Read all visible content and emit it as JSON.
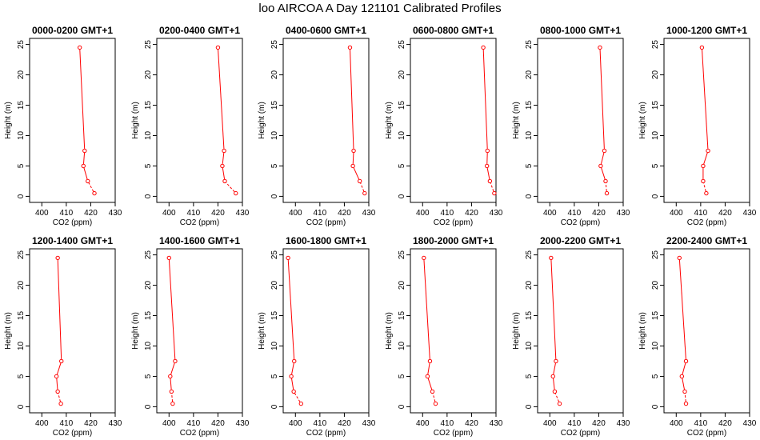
{
  "title": "loo AIRCOA A  Day 121101  Calibrated Profiles",
  "colors": {
    "series": "#ff0000",
    "axis": "#000000"
  },
  "chart_data": [
    {
      "type": "line",
      "title": "0000-0200 GMT+1",
      "xlabel": "CO2 (ppm)",
      "ylabel": "Height (m)",
      "xlim": [
        395,
        430
      ],
      "ylim": [
        -1,
        26
      ],
      "xticks": [
        400,
        410,
        420,
        430
      ],
      "yticks": [
        0,
        5,
        10,
        15,
        20,
        25
      ],
      "x": [
        421.5,
        418.8,
        417.0,
        417.5,
        415.5
      ],
      "y": [
        0.5,
        2.5,
        5.0,
        7.5,
        24.5
      ]
    },
    {
      "type": "line",
      "title": "0200-0400 GMT+1",
      "xlabel": "CO2 (ppm)",
      "ylabel": "Height (m)",
      "xlim": [
        395,
        430
      ],
      "ylim": [
        -1,
        26
      ],
      "xticks": [
        400,
        410,
        420,
        430
      ],
      "yticks": [
        0,
        5,
        10,
        15,
        20,
        25
      ],
      "x": [
        427.3,
        422.8,
        421.8,
        422.5,
        420.0
      ],
      "y": [
        0.5,
        2.5,
        5.0,
        7.5,
        24.5
      ]
    },
    {
      "type": "line",
      "title": "0400-0600 GMT+1",
      "xlabel": "CO2 (ppm)",
      "ylabel": "Height (m)",
      "xlim": [
        395,
        430
      ],
      "ylim": [
        -1,
        26
      ],
      "xticks": [
        400,
        410,
        420,
        430
      ],
      "yticks": [
        0,
        5,
        10,
        15,
        20,
        25
      ],
      "x": [
        428.3,
        426.3,
        423.5,
        423.8,
        422.3
      ],
      "y": [
        0.5,
        2.5,
        5.0,
        7.5,
        24.5
      ]
    },
    {
      "type": "line",
      "title": "0600-0800 GMT+1",
      "xlabel": "CO2 (ppm)",
      "ylabel": "Height (m)",
      "xlim": [
        395,
        430
      ],
      "ylim": [
        -1,
        26
      ],
      "xticks": [
        400,
        410,
        420,
        430
      ],
      "yticks": [
        0,
        5,
        10,
        15,
        20,
        25
      ],
      "x": [
        429.3,
        427.5,
        426.3,
        426.5,
        424.8
      ],
      "y": [
        0.5,
        2.5,
        5.0,
        7.5,
        24.5
      ]
    },
    {
      "type": "line",
      "title": "0800-1000 GMT+1",
      "xlabel": "CO2 (ppm)",
      "ylabel": "Height (m)",
      "xlim": [
        395,
        430
      ],
      "ylim": [
        -1,
        26
      ],
      "xticks": [
        400,
        410,
        420,
        430
      ],
      "yticks": [
        0,
        5,
        10,
        15,
        20,
        25
      ],
      "x": [
        423.3,
        422.8,
        420.8,
        422.3,
        420.5
      ],
      "y": [
        0.5,
        2.5,
        5.0,
        7.5,
        24.5
      ]
    },
    {
      "type": "line",
      "title": "1000-1200 GMT+1",
      "xlabel": "CO2 (ppm)",
      "ylabel": "Height (m)",
      "xlim": [
        395,
        430
      ],
      "ylim": [
        -1,
        26
      ],
      "xticks": [
        400,
        410,
        420,
        430
      ],
      "yticks": [
        0,
        5,
        10,
        15,
        20,
        25
      ],
      "x": [
        412.3,
        411.0,
        411.0,
        413.0,
        410.5
      ],
      "y": [
        0.5,
        2.5,
        5.0,
        7.5,
        24.5
      ]
    },
    {
      "type": "line",
      "title": "1200-1400 GMT+1",
      "xlabel": "CO2 (ppm)",
      "ylabel": "Height (m)",
      "xlim": [
        395,
        430
      ],
      "ylim": [
        -1,
        26
      ],
      "xticks": [
        400,
        410,
        420,
        430
      ],
      "yticks": [
        0,
        5,
        10,
        15,
        20,
        25
      ],
      "x": [
        407.8,
        406.5,
        406.0,
        408.0,
        406.5
      ],
      "y": [
        0.5,
        2.5,
        5.0,
        7.5,
        24.5
      ]
    },
    {
      "type": "line",
      "title": "1400-1600 GMT+1",
      "xlabel": "CO2 (ppm)",
      "ylabel": "Height (m)",
      "xlim": [
        395,
        430
      ],
      "ylim": [
        -1,
        26
      ],
      "xticks": [
        400,
        410,
        420,
        430
      ],
      "yticks": [
        0,
        5,
        10,
        15,
        20,
        25
      ],
      "x": [
        401.5,
        401.0,
        400.5,
        402.5,
        400.0
      ],
      "y": [
        0.5,
        2.5,
        5.0,
        7.5,
        24.5
      ]
    },
    {
      "type": "line",
      "title": "1600-1800 GMT+1",
      "xlabel": "CO2 (ppm)",
      "ylabel": "Height (m)",
      "xlim": [
        395,
        430
      ],
      "ylim": [
        -1,
        26
      ],
      "xticks": [
        400,
        410,
        420,
        430
      ],
      "yticks": [
        0,
        5,
        10,
        15,
        20,
        25
      ],
      "x": [
        402.3,
        399.3,
        398.3,
        399.5,
        397.0
      ],
      "y": [
        0.5,
        2.5,
        5.0,
        7.5,
        24.5
      ]
    },
    {
      "type": "line",
      "title": "1800-2000 GMT+1",
      "xlabel": "CO2 (ppm)",
      "ylabel": "Height (m)",
      "xlim": [
        395,
        430
      ],
      "ylim": [
        -1,
        26
      ],
      "xticks": [
        400,
        410,
        420,
        430
      ],
      "yticks": [
        0,
        5,
        10,
        15,
        20,
        25
      ],
      "x": [
        405.3,
        404.0,
        402.0,
        403.0,
        400.5
      ],
      "y": [
        0.5,
        2.5,
        5.0,
        7.5,
        24.5
      ]
    },
    {
      "type": "line",
      "title": "2000-2200 GMT+1",
      "xlabel": "CO2 (ppm)",
      "ylabel": "Height (m)",
      "xlim": [
        395,
        430
      ],
      "ylim": [
        -1,
        26
      ],
      "xticks": [
        400,
        410,
        420,
        430
      ],
      "yticks": [
        0,
        5,
        10,
        15,
        20,
        25
      ],
      "x": [
        404.0,
        402.0,
        401.3,
        402.5,
        400.5
      ],
      "y": [
        0.5,
        2.5,
        5.0,
        7.5,
        24.5
      ]
    },
    {
      "type": "line",
      "title": "2200-2400 GMT+1",
      "xlabel": "CO2 (ppm)",
      "ylabel": "Height (m)",
      "xlim": [
        395,
        430
      ],
      "ylim": [
        -1,
        26
      ],
      "xticks": [
        400,
        410,
        420,
        430
      ],
      "yticks": [
        0,
        5,
        10,
        15,
        20,
        25
      ],
      "x": [
        404.0,
        403.5,
        402.3,
        404.0,
        401.3
      ],
      "y": [
        0.5,
        2.5,
        5.0,
        7.5,
        24.5
      ]
    }
  ]
}
